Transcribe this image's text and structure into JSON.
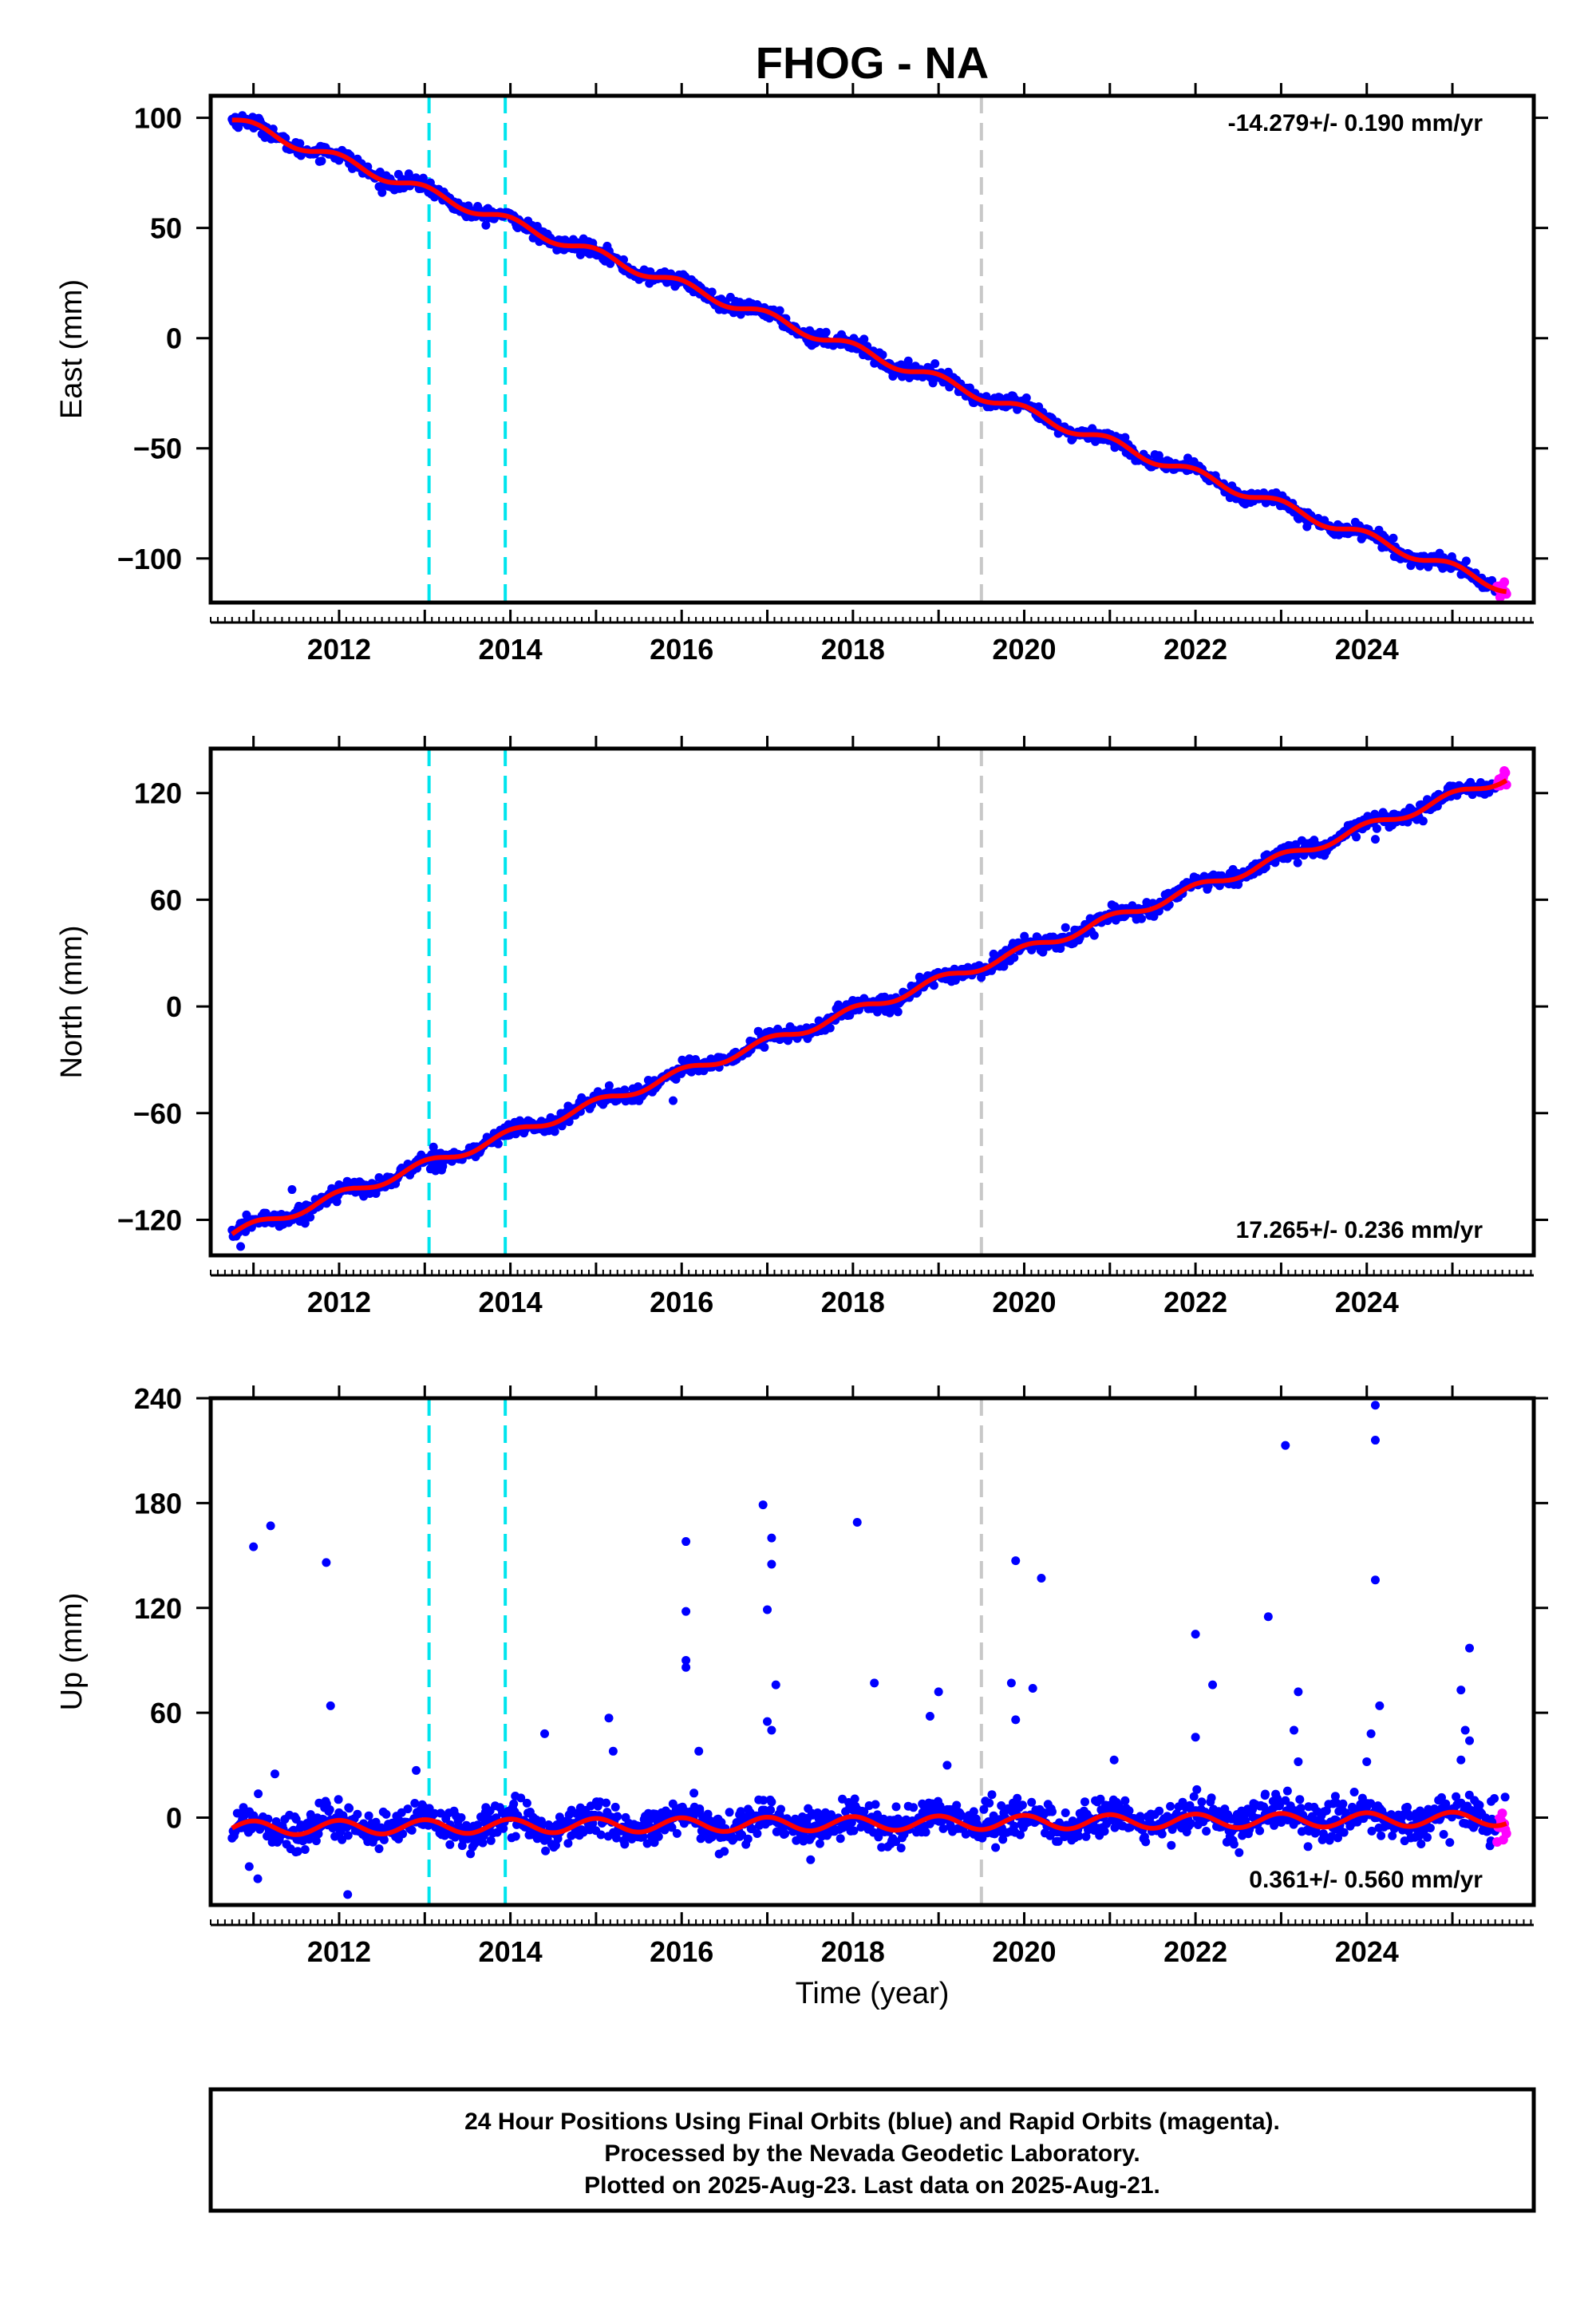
{
  "figure": {
    "title": "FHOG - NA",
    "xlabel": "Time (year)",
    "footer": [
      "24 Hour Positions Using Final Orbits (blue) and Rapid Orbits (magenta).",
      "Processed by the Nevada Geodetic Laboratory.",
      "Plotted on 2025-Aug-23. Last data on 2025-Aug-21."
    ]
  },
  "colors": {
    "final_points": "#0000ff",
    "rapid_points": "#ff00ff",
    "model_line": "#ff0000",
    "equipment_change_line": "#00e5ee",
    "other_change_line": "#c8c8c8",
    "frame": "#000000"
  },
  "chart_data": [
    {
      "type": "scatter",
      "name": "east",
      "ylabel": "East (mm)",
      "rate_text": "-14.279+/- 0.190 mm/yr",
      "rate_position": "top-right",
      "xlim": [
        2010.5,
        2025.95
      ],
      "ylim": [
        -120,
        110
      ],
      "xticks": [
        2012,
        2014,
        2016,
        2018,
        2020,
        2022,
        2024
      ],
      "xtick_labels": [
        "2012",
        "2014",
        "2016",
        "2018",
        "2020",
        "2022",
        "2024"
      ],
      "yticks": [
        -100,
        -50,
        0,
        50,
        100
      ],
      "ytick_labels": [
        "−100",
        "−50",
        "0",
        "50",
        "100"
      ],
      "start_year": 2010.75,
      "end_year": 2025.64,
      "rapid_start_year": 2025.52,
      "start_value": 99,
      "rate_mm_per_yr": -14.279,
      "seasonal_amplitude_mm": 2.3,
      "scatter_mm": 1.6,
      "outliers": [],
      "vlines": [
        {
          "x": 2013.05,
          "kind": "equipment"
        },
        {
          "x": 2013.94,
          "kind": "equipment"
        },
        {
          "x": 2019.5,
          "kind": "other"
        }
      ]
    },
    {
      "type": "scatter",
      "name": "north",
      "ylabel": "North (mm)",
      "rate_text": "17.265+/- 0.236 mm/yr",
      "rate_position": "bottom-right",
      "xlim": [
        2010.5,
        2025.95
      ],
      "ylim": [
        -140,
        145
      ],
      "xticks": [
        2012,
        2014,
        2016,
        2018,
        2020,
        2022,
        2024
      ],
      "xtick_labels": [
        "2012",
        "2014",
        "2016",
        "2018",
        "2020",
        "2022",
        "2024"
      ],
      "yticks": [
        -120,
        -60,
        0,
        60,
        120
      ],
      "ytick_labels": [
        "−120",
        "−60",
        "0",
        "60",
        "120"
      ],
      "start_year": 2010.75,
      "end_year": 2025.64,
      "rapid_start_year": 2025.52,
      "start_value": -128,
      "rate_mm_per_yr": 17.265,
      "seasonal_amplitude_mm": 2.6,
      "scatter_mm": 2.2,
      "outliers": [
        {
          "x": 2010.85,
          "y": -135
        },
        {
          "x": 2011.45,
          "y": -103
        },
        {
          "x": 2015.9,
          "y": -53
        },
        {
          "x": 2024.1,
          "y": 94
        }
      ],
      "vlines": [
        {
          "x": 2013.05,
          "kind": "equipment"
        },
        {
          "x": 2013.94,
          "kind": "equipment"
        },
        {
          "x": 2019.5,
          "kind": "other"
        }
      ]
    },
    {
      "type": "scatter",
      "name": "up",
      "ylabel": "Up (mm)",
      "rate_text": "0.361+/- 0.560 mm/yr",
      "rate_position": "bottom-right",
      "xlim": [
        2010.5,
        2025.95
      ],
      "ylim": [
        -50,
        240
      ],
      "xticks": [
        2012,
        2014,
        2016,
        2018,
        2020,
        2022,
        2024
      ],
      "xtick_labels": [
        "2012",
        "2014",
        "2016",
        "2018",
        "2020",
        "2022",
        "2024"
      ],
      "yticks": [
        0,
        60,
        120,
        180,
        240
      ],
      "ytick_labels": [
        "0",
        "60",
        "120",
        "180",
        "240"
      ],
      "start_year": 2010.75,
      "end_year": 2025.64,
      "rapid_start_year": 2025.52,
      "start_value": -6,
      "rate_mm_per_yr": 0.361,
      "seasonal_amplitude_mm": 4,
      "scatter_mm": 5,
      "outliers": [
        {
          "x": 2011.0,
          "y": 155
        },
        {
          "x": 2011.2,
          "y": 167
        },
        {
          "x": 2011.85,
          "y": 146
        },
        {
          "x": 2011.9,
          "y": 64
        },
        {
          "x": 2012.1,
          "y": -44
        },
        {
          "x": 2011.25,
          "y": 25
        },
        {
          "x": 2012.9,
          "y": 27
        },
        {
          "x": 2014.4,
          "y": 48
        },
        {
          "x": 2015.15,
          "y": 57
        },
        {
          "x": 2015.2,
          "y": 38
        },
        {
          "x": 2016.05,
          "y": 158
        },
        {
          "x": 2016.05,
          "y": 118
        },
        {
          "x": 2016.05,
          "y": 90
        },
        {
          "x": 2016.05,
          "y": 86
        },
        {
          "x": 2016.2,
          "y": 38
        },
        {
          "x": 2016.95,
          "y": 179
        },
        {
          "x": 2017.05,
          "y": 160
        },
        {
          "x": 2017.05,
          "y": 145
        },
        {
          "x": 2017.0,
          "y": 119
        },
        {
          "x": 2017.1,
          "y": 76
        },
        {
          "x": 2017.0,
          "y": 55
        },
        {
          "x": 2017.05,
          "y": 50
        },
        {
          "x": 2018.05,
          "y": 169
        },
        {
          "x": 2018.25,
          "y": 77
        },
        {
          "x": 2018.9,
          "y": 58
        },
        {
          "x": 2019.0,
          "y": 72
        },
        {
          "x": 2019.1,
          "y": 30
        },
        {
          "x": 2019.9,
          "y": 147
        },
        {
          "x": 2019.85,
          "y": 77
        },
        {
          "x": 2019.9,
          "y": 56
        },
        {
          "x": 2020.2,
          "y": 137
        },
        {
          "x": 2020.1,
          "y": 74
        },
        {
          "x": 2021.05,
          "y": 33
        },
        {
          "x": 2022.0,
          "y": 105
        },
        {
          "x": 2022.2,
          "y": 76
        },
        {
          "x": 2022.0,
          "y": 46
        },
        {
          "x": 2022.85,
          "y": 115
        },
        {
          "x": 2023.05,
          "y": 213
        },
        {
          "x": 2023.15,
          "y": 50
        },
        {
          "x": 2023.2,
          "y": 72
        },
        {
          "x": 2023.2,
          "y": 32
        },
        {
          "x": 2024.1,
          "y": 236
        },
        {
          "x": 2024.1,
          "y": 216
        },
        {
          "x": 2024.1,
          "y": 136
        },
        {
          "x": 2024.15,
          "y": 64
        },
        {
          "x": 2024.05,
          "y": 48
        },
        {
          "x": 2024.0,
          "y": 32
        },
        {
          "x": 2025.1,
          "y": 73
        },
        {
          "x": 2025.2,
          "y": 97
        },
        {
          "x": 2025.15,
          "y": 50
        },
        {
          "x": 2025.2,
          "y": 44
        },
        {
          "x": 2025.1,
          "y": 33
        },
        {
          "x": 2010.95,
          "y": -28
        },
        {
          "x": 2011.05,
          "y": -35
        }
      ],
      "vlines": [
        {
          "x": 2013.05,
          "kind": "equipment"
        },
        {
          "x": 2013.94,
          "kind": "equipment"
        },
        {
          "x": 2019.5,
          "kind": "other"
        }
      ]
    }
  ]
}
